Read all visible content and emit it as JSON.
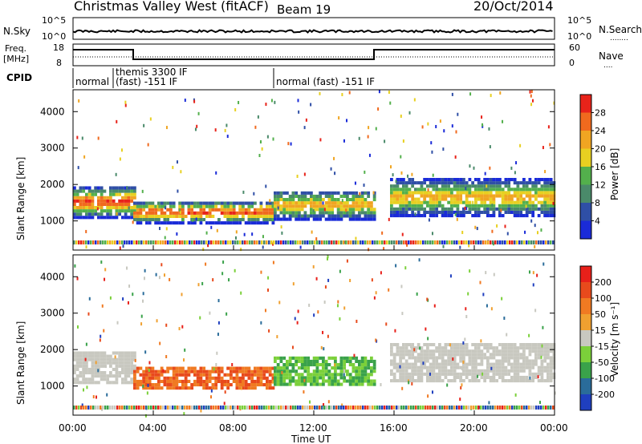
{
  "chart_data": {
    "type": "heatmap",
    "header": {
      "station": "Christmas Valley West (fitACF)",
      "beam": "Beam 19",
      "date": "20/Oct/2014"
    },
    "top_panels": {
      "nsky": {
        "label": "N.Sky",
        "yticks": [
          "10^5",
          "10^0"
        ],
        "right_label": "N.Search",
        "right_yticks": [
          "10^5",
          "10^0"
        ]
      },
      "freq": {
        "label_lines": [
          "Freq.",
          "[MHz]"
        ],
        "yticks": [
          "18",
          "8"
        ],
        "right_label": "Nave",
        "right_yticks": [
          "60",
          "0"
        ]
      },
      "cpid": {
        "label": "CPID",
        "segments": [
          {
            "start_h": 0,
            "end_h": 2,
            "text": "normal"
          },
          {
            "start_h": 2,
            "end_h": 10,
            "text": "themis 3300 IF\n(fast) -151 IF"
          },
          {
            "start_h": 10,
            "end_h": 24,
            "text": "normal (fast) -151 IF"
          }
        ]
      }
    },
    "x": {
      "label": "Time UT",
      "ticks": [
        "00:00",
        "04:00",
        "08:00",
        "12:00",
        "16:00",
        "20:00",
        "00:00"
      ],
      "range_h": [
        0,
        24
      ]
    },
    "power_panel": {
      "ylabel": "Slant Range [km]",
      "yticks": [
        1000,
        2000,
        3000,
        4000
      ],
      "ylim": [
        200,
        4600
      ],
      "colorbar_label": "Power [dB]",
      "colorbar_ticks": [
        "28",
        "24",
        "20",
        "16",
        "12",
        "8",
        "4"
      ],
      "colors": [
        "#1a2bd8",
        "#2f4fa6",
        "#4a8a6a",
        "#53b04c",
        "#e8d021",
        "#f0a522",
        "#f06a1e",
        "#e8231a"
      ]
    },
    "velocity_panel": {
      "ylabel": "Slant Range [km]",
      "yticks": [
        1000,
        2000,
        3000,
        4000
      ],
      "ylim": [
        200,
        4600
      ],
      "colorbar_label": "Velocity [m s⁻¹]",
      "colorbar_ticks": [
        "200",
        "100",
        "50",
        "15",
        "-15",
        "-50",
        "-100",
        "-200"
      ],
      "colors": [
        "#1f3fbf",
        "#2a6c9a",
        "#3aa24a",
        "#7bd03a",
        "#c8c8c0",
        "#f0a030",
        "#f07a22",
        "#e84a1c",
        "#e8201a"
      ]
    },
    "bands": [
      {
        "t0": 0,
        "t1": 3,
        "r0": 1050,
        "r1": 1900,
        "intensity": "high"
      },
      {
        "t0": 3,
        "t1": 10,
        "r0": 900,
        "r1": 1500,
        "intensity": "high"
      },
      {
        "t0": 10,
        "t1": 15,
        "r0": 1000,
        "r1": 1800,
        "intensity": "medium"
      },
      {
        "t0": 15.8,
        "t1": 24,
        "r0": 1100,
        "r1": 2100,
        "intensity": "medium"
      }
    ]
  },
  "colors": {
    "frame": "#000000",
    "background": "#ffffff"
  }
}
